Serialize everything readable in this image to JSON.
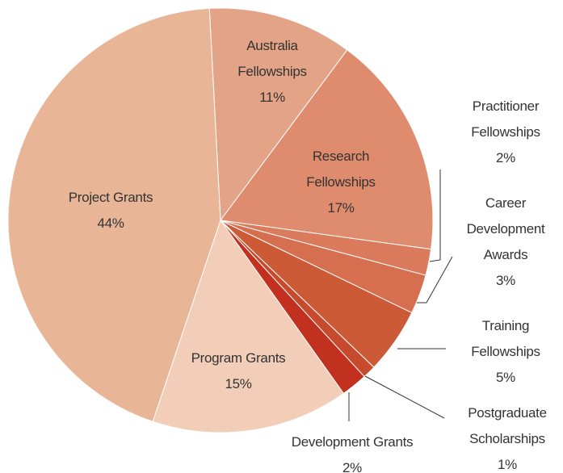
{
  "chart_data": {
    "type": "pie",
    "categories": [
      "Australia Fellowships",
      "Research Fellowships",
      "Practitioner Fellowships",
      "Career Development Awards",
      "Training Fellowships",
      "Postgraduate Scholarships",
      "Development Grants",
      "Program Grants",
      "Project Grants"
    ],
    "values": [
      11,
      17,
      2,
      3,
      5,
      1,
      2,
      15,
      44
    ],
    "value_labels": [
      "11%",
      "17%",
      "2%",
      "3%",
      "5%",
      "1%",
      "2%",
      "15%",
      "44%"
    ],
    "colors": [
      "#e3a386",
      "#df8c6e",
      "#da7b5e",
      "#d56f4f",
      "#cc5a36",
      "#c84a2c",
      "#c2301f",
      "#f2cdb8",
      "#e9b597"
    ]
  }
}
